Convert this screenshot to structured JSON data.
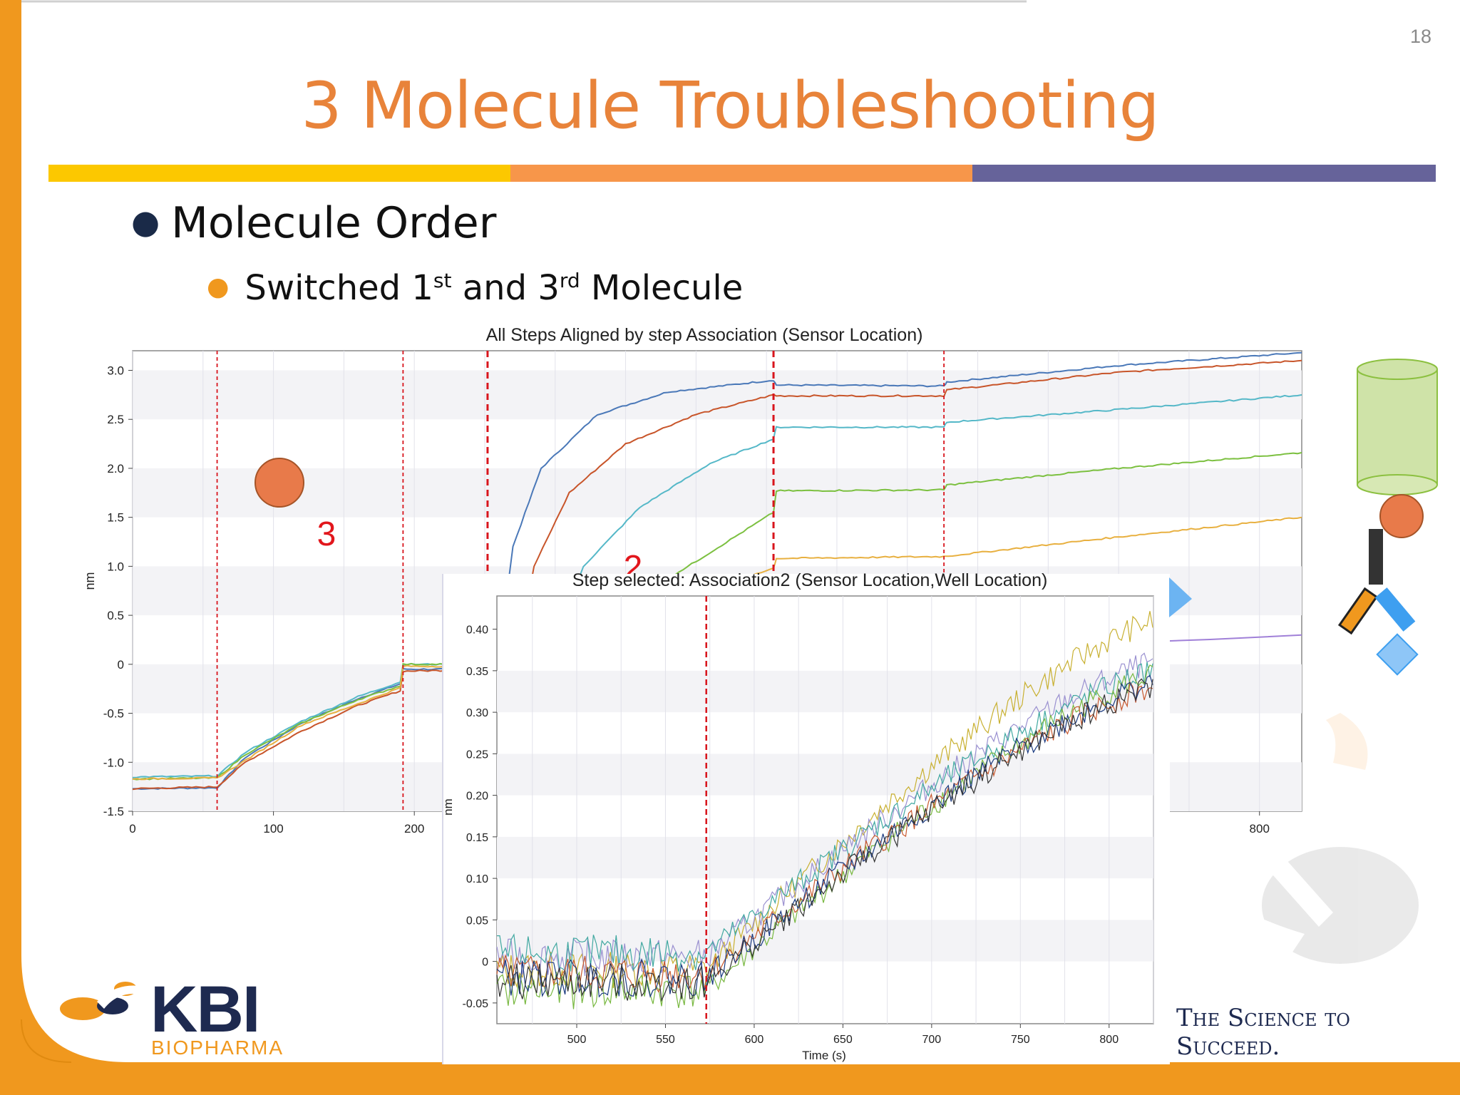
{
  "slide": {
    "number": "18",
    "title": "3 Molecule Troubleshooting",
    "bullet1": "Molecule Order",
    "bullet2": {
      "pre": "Switched 1",
      "sup1": "st",
      "mid": " and 3",
      "sup2": "rd",
      "post": " Molecule"
    },
    "tagline": "The Science to Succeed.",
    "logo": {
      "name": "KBI",
      "sub": "BIOPHARMA"
    },
    "annotations": [
      "3",
      "2"
    ],
    "colors": {
      "title": "#e8833a",
      "bar_yellow": "#fcc800",
      "bar_orange": "#f7964a",
      "bar_purple": "#66639a",
      "frame": "#f0981e"
    }
  },
  "chart_data": [
    {
      "type": "line",
      "title": "All Steps Aligned by step Association (Sensor Location)",
      "ylabel": "nm",
      "xlim": [
        0,
        830
      ],
      "ylim": [
        -1.5,
        3.2
      ],
      "x_ticks": [
        0,
        100,
        200,
        800
      ],
      "y_ticks": [
        3.0,
        2.5,
        2.0,
        1.5,
        1.0,
        0.5,
        0,
        -0.5,
        -1.0,
        -1.5
      ],
      "y_tick_labels": [
        "3.0",
        "2.5",
        "2.0",
        "1.5",
        "1.0",
        "0.5",
        "0",
        "-0.5",
        "-1.0",
        "-1.5"
      ],
      "step_lines_x": [
        60,
        192,
        252,
        455,
        576
      ],
      "series": [
        {
          "color": "#4a78b8",
          "points": [
            [
              0,
              -1.27
            ],
            [
              60,
              -1.26
            ],
            [
              80,
              -0.95
            ],
            [
              120,
              -0.6
            ],
            [
              160,
              -0.35
            ],
            [
              190,
              -0.2
            ],
            [
              192,
              -0.05
            ],
            [
              230,
              -0.05
            ],
            [
              262,
              0.3
            ],
            [
              270,
              1.2
            ],
            [
              290,
              2.0
            ],
            [
              330,
              2.55
            ],
            [
              380,
              2.78
            ],
            [
              455,
              2.9
            ],
            [
              457,
              2.85
            ],
            [
              576,
              2.84
            ],
            [
              578,
              2.88
            ],
            [
              700,
              3.05
            ],
            [
              830,
              3.18
            ]
          ]
        },
        {
          "color": "#c8552a",
          "points": [
            [
              0,
              -1.27
            ],
            [
              60,
              -1.25
            ],
            [
              80,
              -1.0
            ],
            [
              120,
              -0.68
            ],
            [
              160,
              -0.42
            ],
            [
              190,
              -0.27
            ],
            [
              192,
              -0.07
            ],
            [
              230,
              -0.06
            ],
            [
              275,
              0.2
            ],
            [
              285,
              1.0
            ],
            [
              310,
              1.75
            ],
            [
              350,
              2.25
            ],
            [
              400,
              2.55
            ],
            [
              455,
              2.75
            ],
            [
              457,
              2.74
            ],
            [
              576,
              2.74
            ],
            [
              578,
              2.8
            ],
            [
              700,
              2.98
            ],
            [
              830,
              3.1
            ]
          ]
        },
        {
          "color": "#55b8c8",
          "points": [
            [
              0,
              -1.15
            ],
            [
              60,
              -1.14
            ],
            [
              80,
              -0.9
            ],
            [
              120,
              -0.58
            ],
            [
              160,
              -0.33
            ],
            [
              190,
              -0.18
            ],
            [
              192,
              0.0
            ],
            [
              230,
              0.0
            ],
            [
              300,
              0.2
            ],
            [
              320,
              1.0
            ],
            [
              360,
              1.6
            ],
            [
              410,
              2.05
            ],
            [
              455,
              2.3
            ],
            [
              457,
              2.42
            ],
            [
              576,
              2.42
            ],
            [
              578,
              2.47
            ],
            [
              700,
              2.6
            ],
            [
              830,
              2.75
            ]
          ]
        },
        {
          "color": "#7cc040",
          "points": [
            [
              0,
              -1.17
            ],
            [
              60,
              -1.16
            ],
            [
              80,
              -0.92
            ],
            [
              120,
              -0.6
            ],
            [
              160,
              -0.36
            ],
            [
              190,
              -0.22
            ],
            [
              192,
              0.0
            ],
            [
              230,
              0.0
            ],
            [
              330,
              0.2
            ],
            [
              360,
              0.7
            ],
            [
              400,
              1.05
            ],
            [
              455,
              1.55
            ],
            [
              457,
              1.77
            ],
            [
              576,
              1.78
            ],
            [
              578,
              1.83
            ],
            [
              700,
              2.0
            ],
            [
              830,
              2.16
            ]
          ]
        },
        {
          "color": "#e8b040",
          "points": [
            [
              0,
              -1.17
            ],
            [
              60,
              -1.16
            ],
            [
              120,
              -0.62
            ],
            [
              190,
              -0.24
            ],
            [
              192,
              -0.02
            ],
            [
              230,
              -0.02
            ],
            [
              455,
              0.98
            ],
            [
              457,
              1.08
            ],
            [
              576,
              1.1
            ],
            [
              700,
              1.3
            ],
            [
              830,
              1.5
            ]
          ]
        },
        {
          "color": "#a080d8",
          "points": [
            [
              830,
              0.3
            ],
            [
              700,
              0.22
            ]
          ]
        }
      ]
    },
    {
      "type": "line",
      "title": "Step selected: Association2 (Sensor Location,Well Location)",
      "xlabel": "Time (s)",
      "ylabel": "nm",
      "xlim": [
        455,
        825
      ],
      "ylim": [
        -0.075,
        0.44
      ],
      "x_ticks": [
        500,
        550,
        600,
        650,
        700,
        750,
        800
      ],
      "y_ticks": [
        0.4,
        0.35,
        0.3,
        0.25,
        0.2,
        0.15,
        0.1,
        0.05,
        0,
        -0.05
      ],
      "y_tick_labels": [
        "0.40",
        "0.35",
        "0.30",
        "0.25",
        "0.20",
        "0.15",
        "0.10",
        "0.05",
        "0",
        "-0.05"
      ],
      "step_line_x": 573,
      "series": [
        {
          "color": "#c8b030",
          "base": -0.01,
          "end": 0.41
        },
        {
          "color": "#9a90d0",
          "base": 0.005,
          "end": 0.36
        },
        {
          "color": "#40a8a0",
          "base": 0.01,
          "end": 0.35
        },
        {
          "color": "#78b840",
          "base": -0.035,
          "end": 0.345
        },
        {
          "color": "#c85a30",
          "base": -0.015,
          "end": 0.33
        },
        {
          "color": "#1a3a80",
          "base": -0.02,
          "end": 0.335
        },
        {
          "color": "#333333",
          "base": -0.025,
          "end": 0.33
        }
      ]
    }
  ]
}
